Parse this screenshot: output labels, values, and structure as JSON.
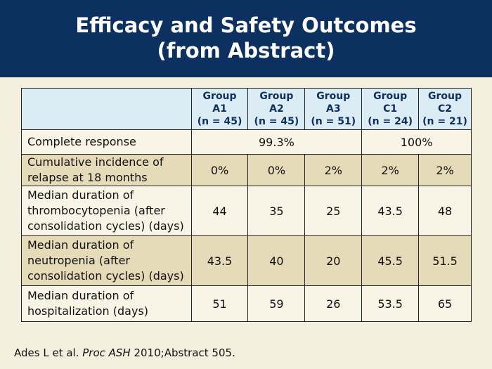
{
  "slide": {
    "title_line1": "Efficacy and Safety Outcomes",
    "title_line2": "(from Abstract)"
  },
  "table": {
    "headers": [
      {
        "line1": "Group",
        "line2": "A1",
        "line3": "(n = 45)"
      },
      {
        "line1": "Group",
        "line2": "A2",
        "line3": "(n = 45)"
      },
      {
        "line1": "Group",
        "line2": "A3",
        "line3": "(n = 51)"
      },
      {
        "line1": "Group",
        "line2": "C1",
        "line3": "(n = 24)"
      },
      {
        "line1": "Group",
        "line2": "C2",
        "line3": "(n = 21)"
      }
    ],
    "complete_response": {
      "label": "Complete response",
      "group_a": "99.3%",
      "group_c": "100%"
    },
    "rows": [
      {
        "label": "Cumulative incidence of relapse at 18 months",
        "values": [
          "0%",
          "0%",
          "2%",
          "2%",
          "2%"
        ]
      },
      {
        "label": "Median duration of thrombocytopenia (after consolidation cycles) (days)",
        "values": [
          "44",
          "35",
          "25",
          "43.5",
          "48"
        ]
      },
      {
        "label": "Median duration of neutropenia (after consolidation cycles) (days)",
        "values": [
          "43.5",
          "40",
          "20",
          "45.5",
          "51.5"
        ]
      },
      {
        "label": "Median duration of hospitalization (days)",
        "values": [
          "51",
          "59",
          "26",
          "53.5",
          "65"
        ]
      }
    ]
  },
  "citation": {
    "prefix": "Ades L et al. ",
    "journal": "Proc ASH",
    "suffix": " 2010;Abstract 505."
  }
}
